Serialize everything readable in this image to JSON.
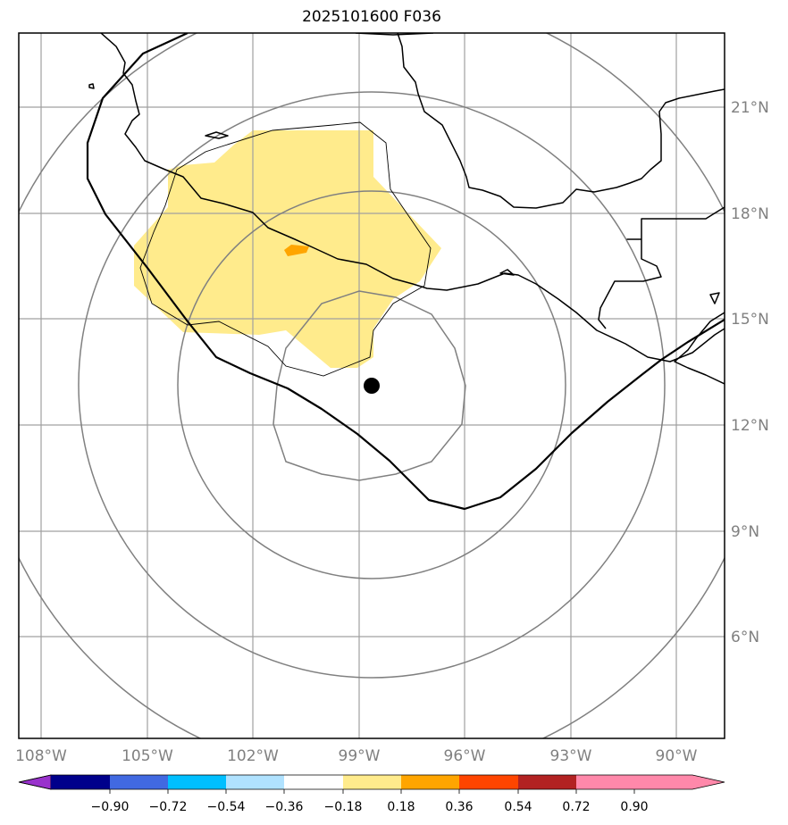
{
  "title": "2025101600 F036",
  "map": {
    "lon_labels": [
      "108°W",
      "105°W",
      "102°W",
      "99°W",
      "96°W",
      "93°W",
      "90°W"
    ],
    "lat_labels": [
      "21°N",
      "18°N",
      "15°N",
      "12°N",
      "9°N",
      "6°N"
    ],
    "center_marker": {
      "lon": -98.6,
      "lat": 13.1
    },
    "colors": {
      "gridline": "#a0a0a0",
      "range_ring": "#808080",
      "coastline": "#000000",
      "track": "#000000"
    }
  },
  "colorbar": {
    "tick_labels": [
      "−0.90",
      "−0.72",
      "−0.54",
      "−0.36",
      "−0.18",
      "0.18",
      "0.36",
      "0.54",
      "0.72",
      "0.90"
    ],
    "colors": [
      "#9932cc",
      "#00008b",
      "#4169e1",
      "#00bfff",
      "#b0e2ff",
      "#ffffff",
      "#ffeb8c",
      "#ffa500",
      "#ff4500",
      "#b22222",
      "#ff88aa"
    ]
  }
}
